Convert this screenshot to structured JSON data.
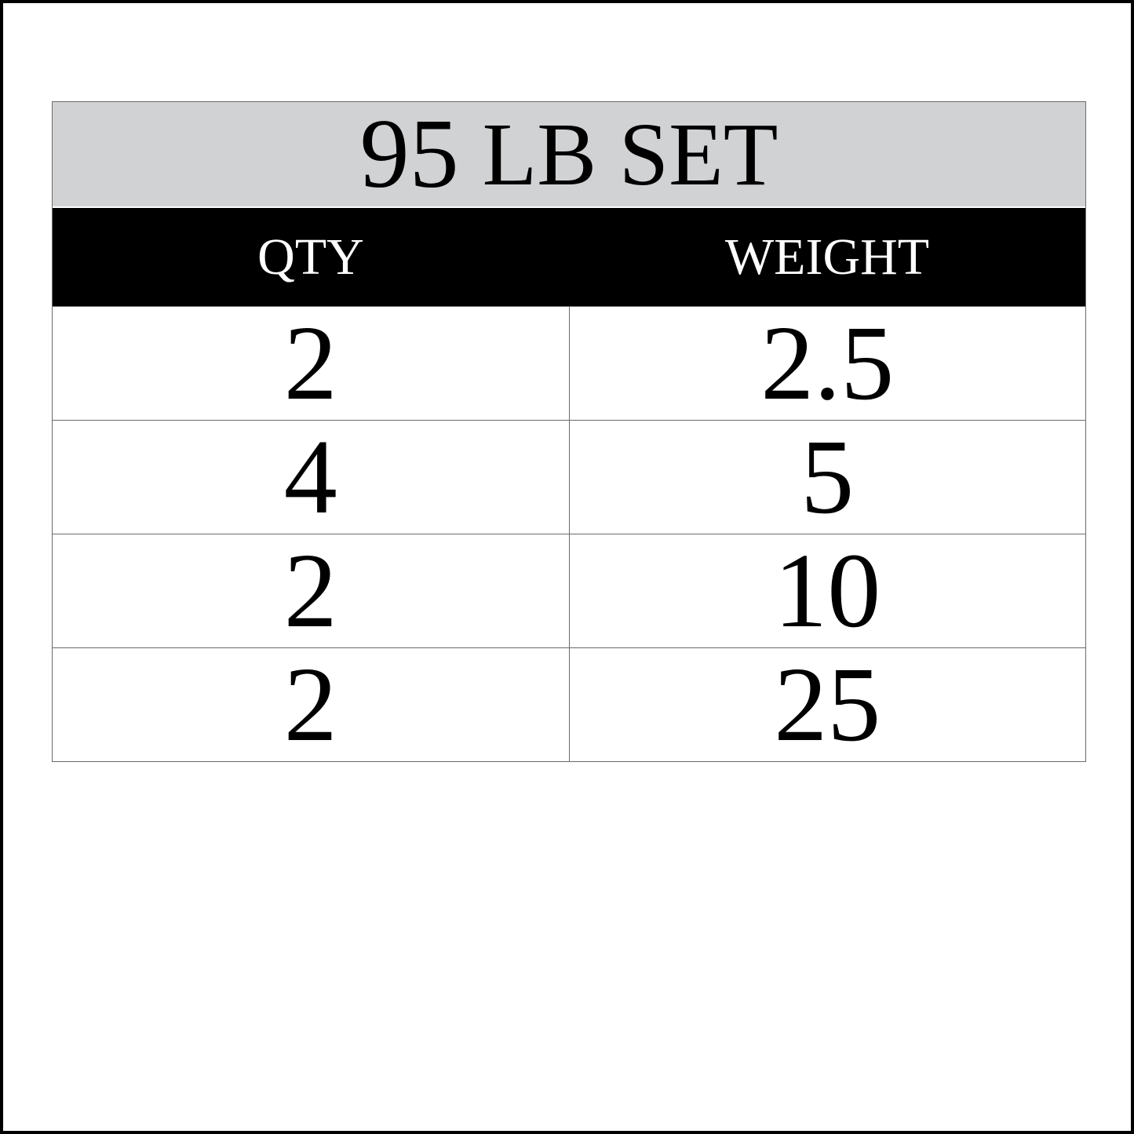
{
  "title": {
    "number": "95",
    "unit": "LB SET"
  },
  "columns": [
    "QTY",
    "WEIGHT"
  ],
  "rows": [
    {
      "qty": "2",
      "weight": "2.5"
    },
    {
      "qty": "4",
      "weight": "5"
    },
    {
      "qty": "2",
      "weight": "10"
    },
    {
      "qty": "2",
      "weight": "25"
    }
  ],
  "colors": {
    "title_band": "#d1d2d4",
    "header_band": "#000000",
    "border": "#6b6b6b"
  }
}
